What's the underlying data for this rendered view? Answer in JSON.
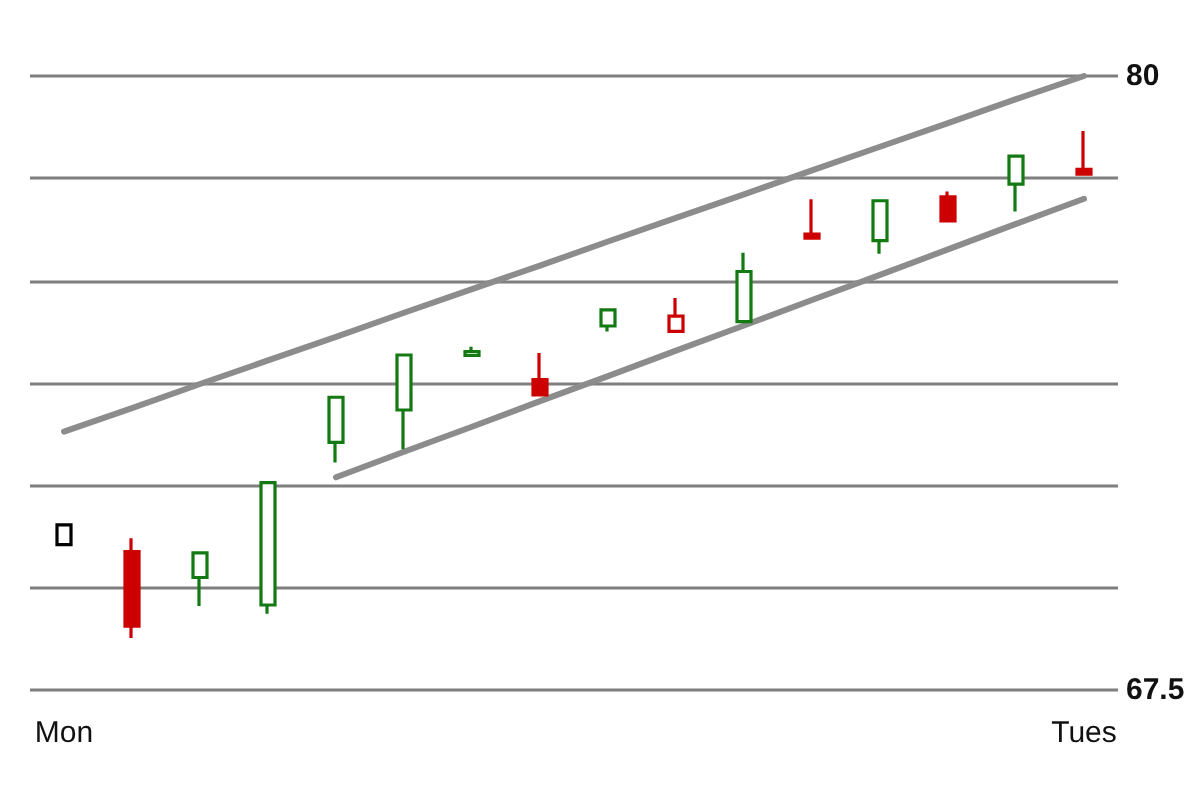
{
  "chart_data": {
    "type": "candlestick",
    "categories": [
      "Mon",
      null,
      null,
      null,
      null,
      null,
      null,
      null,
      null,
      null,
      null,
      null,
      null,
      null,
      null,
      "Tues"
    ],
    "ohlc": [
      [
        70.46,
        70.86,
        70.46,
        70.86
      ],
      [
        70.32,
        70.59,
        68.56,
        68.8
      ],
      [
        69.79,
        70.29,
        69.21,
        70.29
      ],
      [
        69.23,
        71.72,
        69.05,
        71.72
      ],
      [
        72.54,
        73.46,
        72.13,
        73.46
      ],
      [
        73.2,
        74.32,
        72.4,
        74.32
      ],
      [
        74.31,
        74.49,
        74.31,
        74.39
      ],
      [
        73.82,
        74.36,
        73.51,
        73.51
      ],
      [
        74.91,
        75.24,
        74.8,
        75.24
      ],
      [
        74.8,
        75.48,
        74.8,
        75.11
      ],
      [
        75,
        76.4,
        75,
        76.02
      ],
      [
        76.78,
        77.49,
        76.7,
        76.7
      ],
      [
        76.65,
        77.46,
        76.38,
        77.46
      ],
      [
        77.54,
        77.65,
        77.05,
        77.05
      ],
      [
        77.8,
        78.37,
        77.24,
        78.37
      ],
      [
        78.1,
        78.88,
        78,
        78
      ]
    ],
    "colors": [
      "#000000",
      "#cc0000",
      "#137a13",
      "#137a13",
      "#137a13",
      "#137a13",
      "#137a13",
      "#cc0000",
      "#137a13",
      "#cc0000",
      "#137a13",
      "#cc0000",
      "#137a13",
      "#cc0000",
      "#137a13",
      "#cc0000"
    ],
    "ylim": [
      67.5,
      80
    ],
    "yticks": [
      67.5,
      {
        "value": 69.58,
        "label": null
      },
      {
        "value": 71.67,
        "label": null
      },
      {
        "value": 73.75,
        "label": null
      },
      {
        "value": 75.83,
        "label": null
      },
      {
        "value": 77.92,
        "label": null
      },
      80
    ],
    "grid": "y",
    "marker": "none",
    "series": [
      {
        "type": "line",
        "values": [
          72.76,
          73.24,
          73.73,
          74.21,
          74.69,
          75.18,
          75.66,
          76.14,
          76.63,
          77.11,
          77.59,
          78.08,
          78.56,
          79.04,
          79.53,
          80.0
        ],
        "color": "#8c8c8c"
      },
      {
        "type": "line",
        "values": [
          null,
          null,
          null,
          null,
          71.83,
          72.35,
          72.86,
          73.38,
          73.89,
          74.41,
          74.92,
          75.44,
          75.95,
          76.47,
          76.99,
          77.5
        ],
        "color": "#8c8c8c"
      }
    ]
  }
}
